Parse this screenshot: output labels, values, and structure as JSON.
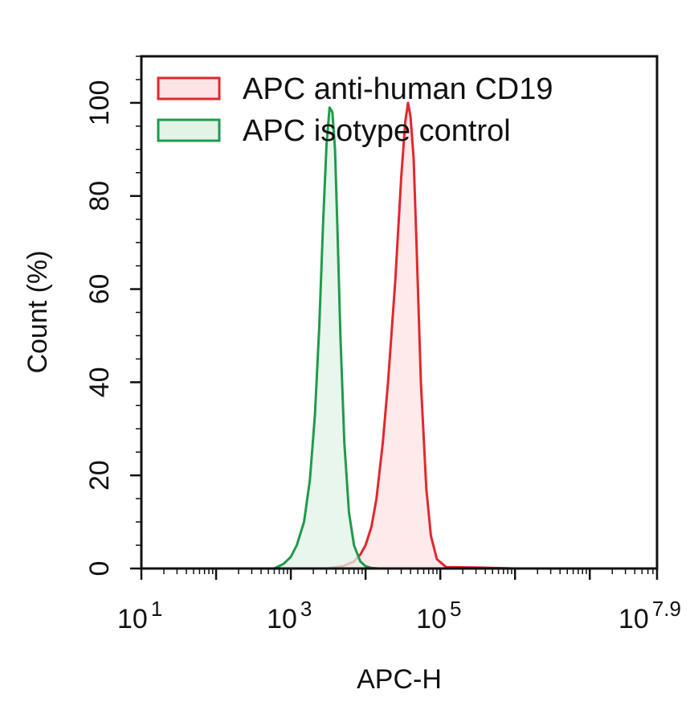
{
  "chart_data": {
    "type": "area",
    "xlabel": "APC-H",
    "ylabel": "Count  (%)",
    "x_scale": "log",
    "xlim": [
      10,
      79432823
    ],
    "ylim": [
      0,
      110
    ],
    "y_ticks": [
      {
        "value": 0,
        "label": "0"
      },
      {
        "value": 20,
        "label": "20"
      },
      {
        "value": 40,
        "label": "40"
      },
      {
        "value": 60,
        "label": "60"
      },
      {
        "value": 80,
        "label": "80"
      },
      {
        "value": 100,
        "label": "100"
      }
    ],
    "x_ticks": [
      {
        "value": 10,
        "base": "10",
        "exp": "1"
      },
      {
        "value": 1000,
        "base": "10",
        "exp": "3"
      },
      {
        "value": 100000,
        "base": "10",
        "exp": "5"
      },
      {
        "value": 79432823,
        "base": "10",
        "exp": "7.9"
      }
    ],
    "legend": "top-left",
    "grid": false,
    "series": [
      {
        "name": "APC anti-human CD19",
        "color": "#e0282e",
        "fill": "#fde3e3",
        "x": [
          3000,
          5000,
          7000,
          8500,
          10000,
          12000,
          14000,
          17000,
          20000,
          25000,
          30000,
          34000,
          37000,
          40000,
          44000,
          48000,
          55000,
          65000,
          75000,
          90000,
          120000,
          300000,
          1000000
        ],
        "y": [
          0,
          0.5,
          1.5,
          3,
          5,
          9,
          15,
          27,
          40,
          62,
          84,
          96,
          100,
          97,
          88,
          70,
          40,
          17,
          7,
          2,
          0.3,
          0.2,
          0
        ]
      },
      {
        "name": "APC isotype control",
        "color": "#1f9b4b",
        "fill": "#e2f3e7",
        "x": [
          600,
          800,
          1000,
          1200,
          1500,
          1800,
          2100,
          2400,
          2700,
          3000,
          3300,
          3600,
          3900,
          4200,
          4600,
          5200,
          6000,
          7000,
          8500,
          10000,
          12000,
          15000
        ],
        "y": [
          0,
          1,
          2.5,
          5,
          10,
          19,
          33,
          52,
          74,
          91,
          99,
          98,
          90,
          73,
          50,
          27,
          12,
          5,
          1.5,
          0.5,
          0.1,
          0
        ]
      }
    ]
  }
}
